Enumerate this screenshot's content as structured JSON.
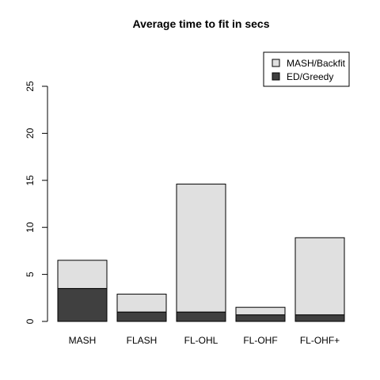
{
  "chart_data": {
    "type": "bar",
    "stacked": true,
    "title": "Average time to fit in secs",
    "xlabel": "",
    "ylabel": "",
    "categories": [
      "MASH",
      "FLASH",
      "FL-OHL",
      "FL-OHF",
      "FL-OHF+"
    ],
    "series": [
      {
        "name": "ED/Greedy",
        "values": [
          3.5,
          1.0,
          1.0,
          0.7,
          0.7
        ],
        "color": "#404040"
      },
      {
        "name": "MASH/Backfit",
        "values": [
          3.0,
          1.9,
          13.6,
          0.8,
          8.2
        ],
        "color": "#e0e0e0"
      }
    ],
    "legend_order": [
      "MASH/Backfit",
      "ED/Greedy"
    ],
    "legend_position": "top-right",
    "ylim": [
      0,
      25
    ],
    "yticks": [
      0,
      5,
      10,
      15,
      20,
      25
    ],
    "grid": false
  }
}
